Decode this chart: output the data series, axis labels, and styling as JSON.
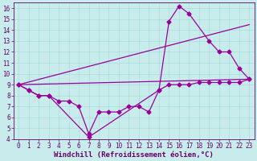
{
  "xlabel": "Windchill (Refroidissement éolien,°C)",
  "bg_color": "#c8ecec",
  "line_color": "#990099",
  "grid_color": "#aadddd",
  "xlim": [
    -0.5,
    23.5
  ],
  "ylim": [
    4,
    16.5
  ],
  "xticks": [
    0,
    1,
    2,
    3,
    4,
    5,
    6,
    7,
    8,
    9,
    10,
    11,
    12,
    13,
    14,
    15,
    16,
    17,
    18,
    19,
    20,
    21,
    22,
    23
  ],
  "yticks": [
    4,
    5,
    6,
    7,
    8,
    9,
    10,
    11,
    12,
    13,
    14,
    15,
    16
  ],
  "line1_x": [
    0,
    1,
    2,
    3,
    4,
    5,
    6,
    7,
    8,
    9,
    10,
    11,
    12,
    13,
    14,
    15,
    16,
    17,
    18,
    19,
    20,
    21,
    22,
    23
  ],
  "line1_y": [
    9.0,
    8.5,
    8.0,
    8.0,
    7.5,
    7.5,
    7.0,
    4.5,
    6.5,
    6.5,
    6.5,
    7.0,
    7.0,
    6.5,
    8.5,
    9.0,
    9.0,
    9.0,
    9.2,
    9.2,
    9.2,
    9.2,
    9.2,
    9.5
  ],
  "line2_x": [
    0,
    1,
    2,
    3,
    7,
    14,
    15,
    16,
    17,
    19,
    20,
    21,
    22,
    23
  ],
  "line2_y": [
    9.0,
    8.5,
    8.0,
    8.0,
    4.2,
    8.5,
    14.8,
    16.2,
    15.5,
    13.0,
    12.0,
    12.0,
    10.5,
    9.5
  ],
  "line3_x": [
    0,
    23
  ],
  "line3_y": [
    9.0,
    9.5
  ],
  "line4_x": [
    0,
    23
  ],
  "line4_y": [
    9.0,
    14.5
  ],
  "marker": "D",
  "marker_size": 2.5,
  "line_width": 0.9,
  "xlabel_fontsize": 6.5,
  "tick_fontsize": 5.5,
  "tick_color": "#660066"
}
